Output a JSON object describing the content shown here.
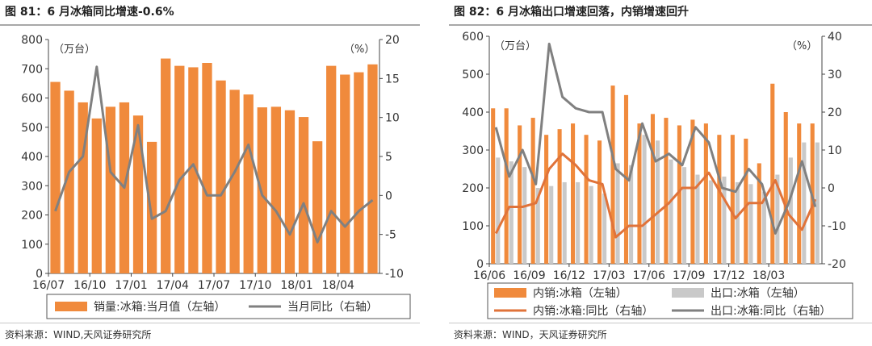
{
  "colors": {
    "orange": "#F08A3C",
    "orange_line": "#E0733A",
    "gray_bar": "#C9C9C9",
    "gray_line": "#808080",
    "axis": "#444444"
  },
  "chart_data": [
    {
      "type": "bar",
      "title": "图 81：6 月冰箱同比增速-0.6%",
      "source": "资料来源：WIND,天风证券研究所",
      "left_unit": "（万台）",
      "right_unit": "（%）",
      "ylim_left": [
        0,
        800
      ],
      "ylim_right": [
        -10,
        20
      ],
      "yticks_left": [
        "0",
        "100",
        "200",
        "300",
        "400",
        "500",
        "600",
        "700",
        "800"
      ],
      "yticks_right": [
        "-10",
        "-5",
        "0",
        "5",
        "10",
        "15",
        "20"
      ],
      "xtick_labels": [
        "16/07",
        "16/10",
        "17/01",
        "17/04",
        "17/07",
        "17/10",
        "18/01",
        "18/04"
      ],
      "xtick_index": [
        0,
        3,
        6,
        9,
        12,
        15,
        18,
        21
      ],
      "months": [
        "16/07",
        "16/08",
        "16/09",
        "16/10",
        "16/11",
        "16/12",
        "17/01",
        "17/02",
        "17/03",
        "17/04",
        "17/05",
        "17/06",
        "17/07",
        "17/08",
        "17/09",
        "17/10",
        "17/11",
        "17/12",
        "18/01",
        "18/02",
        "18/03",
        "18/04",
        "18/05",
        "18/06"
      ],
      "series": [
        {
          "name": "销量:冰箱:当月值（左轴）",
          "kind": "bar",
          "axis": "left",
          "values": [
            655,
            625,
            585,
            530,
            570,
            585,
            540,
            450,
            735,
            710,
            705,
            720,
            660,
            628,
            612,
            568,
            570,
            558,
            535,
            452,
            710,
            680,
            688,
            715
          ]
        },
        {
          "name": "当月同比（右轴）",
          "kind": "line",
          "axis": "right",
          "values": [
            -2,
            3,
            5,
            16.5,
            3,
            1,
            9,
            -3,
            -2,
            2,
            4,
            0,
            0,
            3,
            6.5,
            0,
            -2,
            -5,
            -1,
            -6,
            -2,
            -4,
            -2,
            -0.6
          ]
        }
      ]
    },
    {
      "type": "bar",
      "title": "图 82：6 月冰箱出口增速回落，内销增速回升",
      "source": "资料来源：WIND，天风证券研究所",
      "left_unit": "（万台）",
      "right_unit": "（%）",
      "ylim_left": [
        0,
        600
      ],
      "ylim_right": [
        -20,
        40
      ],
      "yticks_left": [
        "0",
        "100",
        "200",
        "300",
        "400",
        "500",
        "600"
      ],
      "yticks_right": [
        "-20",
        "-10",
        "0",
        "10",
        "20",
        "30",
        "40"
      ],
      "xtick_labels": [
        "16/06",
        "16/09",
        "16/12",
        "17/03",
        "17/06",
        "17/09",
        "17/12",
        "18/03"
      ],
      "xtick_index": [
        0,
        3,
        6,
        9,
        12,
        15,
        18,
        21
      ],
      "months": [
        "16/06",
        "16/07",
        "16/08",
        "16/09",
        "16/10",
        "16/11",
        "16/12",
        "17/01",
        "17/02",
        "17/03",
        "17/04",
        "17/05",
        "17/06",
        "17/07",
        "17/08",
        "17/09",
        "17/10",
        "17/11",
        "17/12",
        "18/01",
        "18/02",
        "18/03",
        "18/04",
        "18/05",
        "18/06"
      ],
      "series": [
        {
          "name": "内销:冰箱（左轴）",
          "kind": "bar",
          "axis": "left",
          "values": [
            410,
            410,
            365,
            385,
            340,
            355,
            370,
            340,
            325,
            470,
            445,
            370,
            395,
            385,
            365,
            380,
            370,
            340,
            340,
            330,
            265,
            475,
            400,
            370,
            370
          ]
        },
        {
          "name": "出口:冰箱（左轴）",
          "kind": "bar",
          "axis": "left",
          "values": [
            280,
            270,
            255,
            200,
            205,
            215,
            215,
            205,
            185,
            265,
            260,
            340,
            325,
            275,
            255,
            235,
            220,
            230,
            215,
            210,
            190,
            235,
            280,
            320,
            320
          ]
        },
        {
          "name": "内销:冰箱:同比（右轴）",
          "kind": "line",
          "axis": "right",
          "values": [
            -12,
            -5,
            -5,
            -4,
            5,
            9,
            6,
            2,
            1,
            -13,
            -10,
            -10,
            -7,
            -4,
            0,
            0,
            4,
            -2,
            -8,
            -4,
            -4,
            2,
            -7,
            -11,
            -3
          ]
        },
        {
          "name": "出口:冰箱:同比（右轴）",
          "kind": "line",
          "axis": "right",
          "values": [
            16,
            3,
            10,
            1,
            38,
            24,
            21,
            20,
            20,
            5,
            2,
            17,
            7,
            9,
            6,
            16,
            12,
            0,
            -1,
            5,
            1,
            -12,
            -4,
            7,
            -5
          ]
        }
      ]
    }
  ]
}
